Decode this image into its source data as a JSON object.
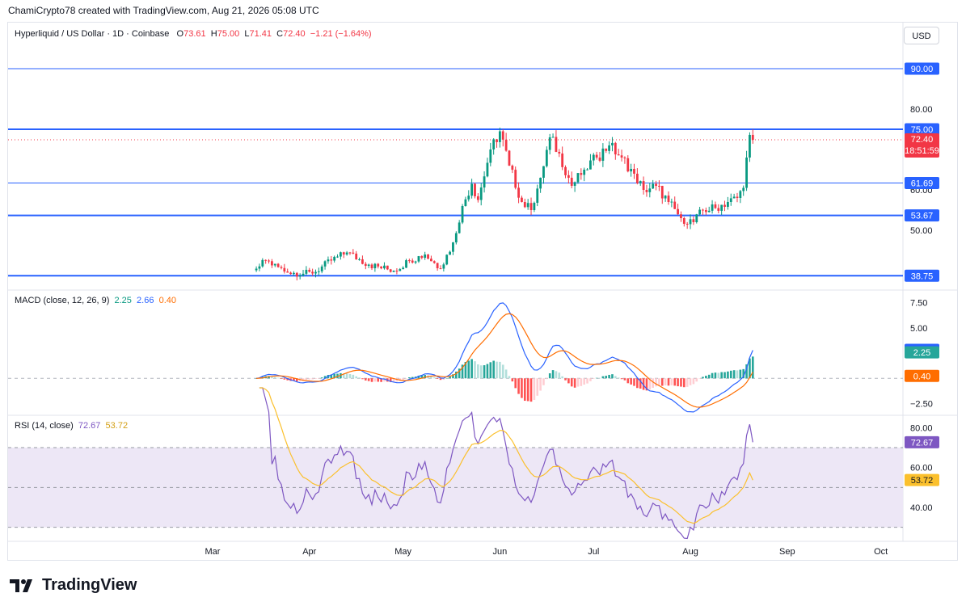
{
  "header": {
    "text": "ChamiCrypto78 created with TradingView.com, Aug 21, 2026 05:08 UTC"
  },
  "currency_button": "USD",
  "legend": {
    "symbol": "Hyperliquid / US Dollar · 1D · Coinbase",
    "o_label": "O",
    "o": "73.61",
    "h_label": "H",
    "h": "75.00",
    "l_label": "L",
    "l": "71.41",
    "c_label": "C",
    "c": "72.40",
    "change": "−1.21 (−1.64%)"
  },
  "macd_legend": {
    "title": "MACD (close, 12, 26, 9)",
    "hist": "2.25",
    "macd": "2.66",
    "signal": "0.40"
  },
  "rsi_legend": {
    "title": "RSI (14, close)",
    "rsi": "72.67",
    "ma": "53.72"
  },
  "brand": "TradingView",
  "colors": {
    "up": "#089981",
    "down": "#f23645",
    "level": "#2962ff",
    "macd": "#2962ff",
    "signal": "#ff6d00",
    "rsi": "#7e57c2",
    "rsi_ma": "#fbc02d",
    "rsi_band": "#ede7f6"
  },
  "chart_data": [
    {
      "type": "candlestick",
      "title": "Hyperliquid / US Dollar · 1D · Coinbase",
      "x_ticks": [
        "Mar",
        "Apr",
        "May",
        "Jun",
        "Jul",
        "Aug",
        "Sep",
        "Oct"
      ],
      "y_ticks": [
        "50.00",
        "60.00",
        "80.00"
      ],
      "ylim": [
        36,
        95
      ],
      "levels": [
        {
          "value": 90.0,
          "label": "90.00"
        },
        {
          "value": 75.0,
          "label": "75.00"
        },
        {
          "value": 61.69,
          "label": "61.69"
        },
        {
          "value": 53.67,
          "label": "53.67"
        },
        {
          "value": 38.75,
          "label": "38.75"
        }
      ],
      "last_price": {
        "value": 72.4,
        "label": "72.40",
        "countdown": "18:51:59"
      },
      "close_anchors": [
        [
          "Mar 15",
          40.5
        ],
        [
          "Mar 18",
          42.5
        ],
        [
          "Mar 25",
          39.5
        ],
        [
          "Apr 2",
          39.3
        ],
        [
          "Apr 8",
          42.5
        ],
        [
          "Apr 13",
          44.5
        ],
        [
          "Apr 20",
          41.5
        ],
        [
          "Apr 28",
          40.0
        ],
        [
          "May 3",
          42.5
        ],
        [
          "May 8",
          44.0
        ],
        [
          "May 13",
          40.5
        ],
        [
          "May 17",
          47.0
        ],
        [
          "May 20",
          56.0
        ],
        [
          "May 23",
          61.5
        ],
        [
          "May 25",
          57.5
        ],
        [
          "May 29",
          70.0
        ],
        [
          "Jun 1",
          74.5
        ],
        [
          "Jun 4",
          66.0
        ],
        [
          "Jun 8",
          57.0
        ],
        [
          "Jun 11",
          55.0
        ],
        [
          "Jun 14",
          63.0
        ],
        [
          "Jun 17",
          73.0
        ],
        [
          "Jun 20",
          69.0
        ],
        [
          "Jun 24",
          61.0
        ],
        [
          "Jun 28",
          65.0
        ],
        [
          "Jul 2",
          68.0
        ],
        [
          "Jul 6",
          71.0
        ],
        [
          "Jul 10",
          68.0
        ],
        [
          "Jul 14",
          64.0
        ],
        [
          "Jul 17",
          60.0
        ],
        [
          "Jul 21",
          61.0
        ],
        [
          "Jul 25",
          57.0
        ],
        [
          "Jul 29",
          53.0
        ],
        [
          "Aug 2",
          52.0
        ],
        [
          "Aug 5",
          55.0
        ],
        [
          "Aug 9",
          55.5
        ],
        [
          "Aug 13",
          57.0
        ],
        [
          "Aug 16",
          58.0
        ],
        [
          "Aug 18",
          60.5
        ],
        [
          "Aug 19",
          68.0
        ],
        [
          "Aug 20",
          73.61
        ],
        [
          "Aug 21",
          72.4
        ]
      ],
      "last_ohlc": {
        "open": 73.61,
        "high": 75.0,
        "low": 71.41,
        "close": 72.4
      }
    },
    {
      "type": "line",
      "title": "MACD (close, 12, 26, 9)",
      "y_ticks": [
        "7.50",
        "5.00",
        "−2.50"
      ],
      "ylim": [
        -3.5,
        8.5
      ],
      "series": [
        {
          "name": "MACD",
          "last": 2.66
        },
        {
          "name": "Signal",
          "last": 0.4
        },
        {
          "name": "Histogram",
          "last": 2.25
        }
      ],
      "value_labels": [
        "2.66",
        "2.25",
        "0.40"
      ]
    },
    {
      "type": "line",
      "title": "RSI (14, close)",
      "y_ticks": [
        "80.00",
        "60.00",
        "40.00"
      ],
      "ylim": [
        25,
        85
      ],
      "bands": [
        70,
        50,
        30
      ],
      "series": [
        {
          "name": "RSI",
          "last": 72.67
        },
        {
          "name": "RSI MA",
          "last": 53.72
        }
      ],
      "value_labels": [
        "72.67",
        "53.72"
      ]
    }
  ]
}
